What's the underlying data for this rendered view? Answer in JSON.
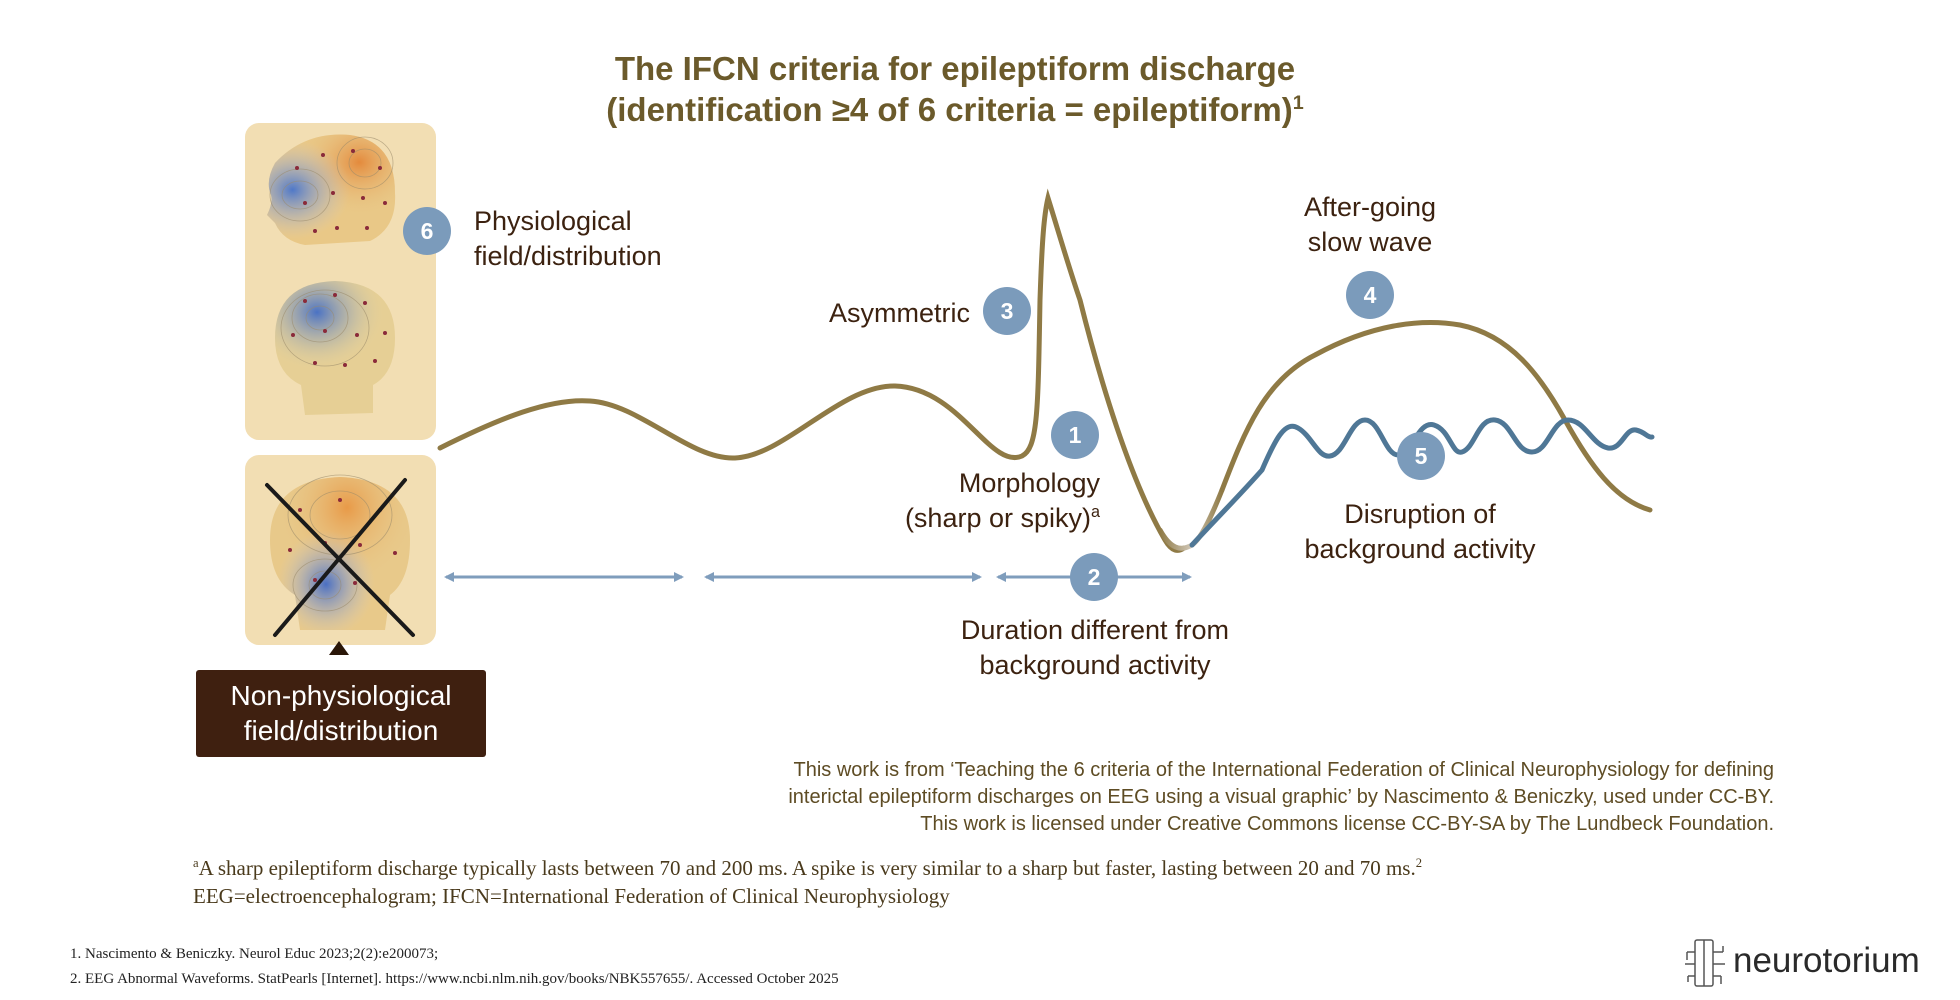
{
  "title": {
    "line1": "The IFCN criteria for epileptiform discharge",
    "line2": "(identification ≥4 of 6 criteria = epileptiform)",
    "sup": "1"
  },
  "criteria": [
    {
      "number": "1",
      "line1": "Morphology",
      "line2": "(sharp or spiky)",
      "sup": "a"
    },
    {
      "number": "2",
      "line1": "Duration different from",
      "line2": "background activity"
    },
    {
      "number": "3",
      "line1": "Asymmetric"
    },
    {
      "number": "4",
      "line1": "After-going",
      "line2": "slow wave"
    },
    {
      "number": "5",
      "line1": "Disruption of",
      "line2": "background activity"
    },
    {
      "number": "6",
      "line1": "Physiological",
      "line2": "field/distribution"
    }
  ],
  "non_physiological": {
    "line1": "Non-physiological",
    "line2": "field/distribution"
  },
  "credit": {
    "line1": "This work is from ‘Teaching the 6 criteria of the International Federation of Clinical Neurophysiology for defining",
    "line2": "interictal epileptiform discharges on EEG using a visual graphic’ by Nascimento & Beniczky, used under CC-BY.",
    "line3": "This work is licensed under Creative Commons license CC-BY-SA by The Lundbeck Foundation."
  },
  "footnotes": {
    "a_marker": "a",
    "a_text": "A sharp epileptiform discharge typically lasts between 70 and 200 ms. A spike is very similar to a sharp but faster, lasting between 20 and 70 ms.",
    "a_sup": "2",
    "abbrev": "EEG=electroencephalogram; IFCN=International Federation of Clinical Neurophysiology"
  },
  "references": [
    "1. Nascimento & Beniczky. Neurol Educ 2023;2(2):e200073;",
    "2. EEG Abnormal Waveforms. StatPearls [Internet]. https://www.ncbi.nlm.nih.gov/books/NBK557655/. Accessed October 2025"
  ],
  "logo": {
    "text": "neurotorium"
  },
  "colors": {
    "title": "#6b5a2b",
    "wave_gold": "#8f7a45",
    "wave_blue": "#4f7796",
    "badge": "#7b9bbb",
    "arrow": "#7f9dbc",
    "dark_box": "#3f2010",
    "card": "#f2deb3"
  }
}
